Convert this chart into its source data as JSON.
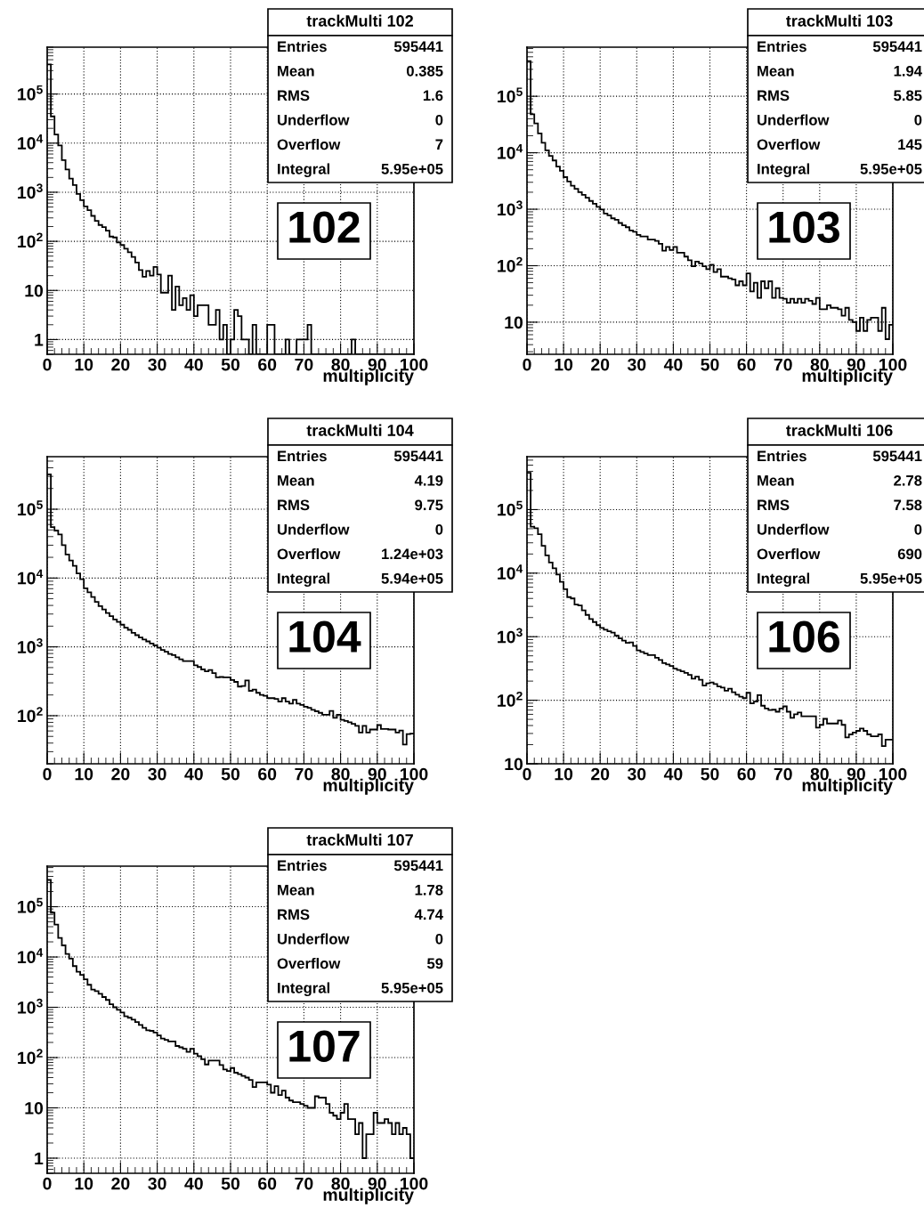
{
  "chart_data": [
    {
      "type": "histogram",
      "title": "trackMulti 102",
      "xlabel": "multiplicity",
      "color": "#000000",
      "log": "y",
      "grid": true,
      "annotations": [
        "102",
        "Entries",
        "595441",
        "Mean",
        "0.385",
        "RMS",
        "1.6",
        "Underflow",
        "0",
        "Overflow",
        "7",
        "Integral",
        "5.95e+05"
      ],
      "bins": [
        0,
        1,
        2,
        3,
        4,
        5,
        6,
        7,
        8,
        9,
        10,
        11,
        12,
        13,
        14,
        15,
        16,
        17,
        18,
        19,
        20,
        21,
        22,
        23,
        24,
        25,
        26,
        27,
        28,
        29,
        30,
        31,
        32,
        33,
        34,
        35,
        36,
        37,
        38,
        39,
        40,
        41,
        42,
        43,
        44,
        45,
        46,
        47,
        48,
        49,
        50,
        51,
        52,
        53,
        54,
        55,
        56,
        57,
        58,
        59,
        60,
        61,
        62,
        63,
        64,
        65,
        66,
        67,
        68,
        69,
        70,
        71,
        72,
        73,
        74,
        75,
        76,
        77,
        78,
        79,
        80,
        81,
        82,
        83,
        84,
        85,
        86,
        87,
        88,
        89,
        90,
        91,
        92,
        93,
        94,
        95,
        96,
        97,
        98,
        99,
        100
      ],
      "values": [
        400000,
        35000,
        15000,
        9000,
        4500,
        2900,
        1900,
        1400,
        920,
        690,
        515,
        430,
        330,
        260,
        215,
        195,
        165,
        125,
        120,
        95,
        84,
        71,
        60,
        48,
        37,
        26,
        19,
        25,
        20,
        30,
        21,
        9,
        9,
        20,
        4,
        12,
        5,
        7,
        4,
        8,
        3,
        5,
        5,
        5,
        2,
        2,
        4,
        1,
        2,
        null,
        1,
        4,
        3,
        1,
        1,
        null,
        2,
        null,
        null,
        null,
        2,
        2,
        null,
        null,
        null,
        1,
        null,
        null,
        1,
        1,
        1,
        2,
        null,
        null,
        null,
        null,
        null,
        null,
        null,
        null,
        null,
        null,
        null,
        1,
        null,
        null,
        null,
        null,
        null,
        null,
        null,
        null,
        null,
        null,
        null,
        null,
        null,
        null,
        null,
        null
      ],
      "xlim": [
        0,
        100
      ],
      "xticks": [
        0,
        10,
        20,
        30,
        40,
        50,
        60,
        70,
        80,
        90,
        100
      ],
      "ylim": [
        0.5,
        900000
      ],
      "yticks": [
        1,
        10,
        {
          "value": 100,
          "label": "10$^{2}$"
        },
        {
          "value": 1000,
          "label": "10$^{3}$"
        },
        {
          "value": 10000,
          "label": "10$^{4}$"
        },
        {
          "value": 100000,
          "label": "10$^{5}$"
        }
      ]
    },
    {
      "type": "histogram",
      "title": "trackMulti 103",
      "xlabel": "multiplicity",
      "color": "#000000",
      "log": "y",
      "grid": true,
      "annotations": [
        "103",
        "Entries",
        "595441",
        "Mean",
        "1.94",
        "RMS",
        "5.85",
        "Underflow",
        "0",
        "Overflow",
        "145",
        "Integral",
        "5.95e+05"
      ],
      "bins": [
        0,
        1,
        2,
        3,
        4,
        5,
        6,
        7,
        8,
        9,
        10,
        11,
        12,
        13,
        14,
        15,
        16,
        17,
        18,
        19,
        20,
        21,
        22,
        23,
        24,
        25,
        26,
        27,
        28,
        29,
        30,
        31,
        32,
        33,
        34,
        35,
        36,
        37,
        38,
        39,
        40,
        41,
        42,
        43,
        44,
        45,
        46,
        47,
        48,
        49,
        50,
        51,
        52,
        53,
        54,
        55,
        56,
        57,
        58,
        59,
        60,
        61,
        62,
        63,
        64,
        65,
        66,
        67,
        68,
        69,
        70,
        71,
        72,
        73,
        74,
        75,
        76,
        77,
        78,
        79,
        80,
        81,
        82,
        83,
        84,
        85,
        86,
        87,
        88,
        89,
        90,
        91,
        92,
        93,
        94,
        95,
        96,
        97,
        98,
        99,
        100
      ],
      "values": [
        420000,
        48000,
        33000,
        22000,
        15000,
        11000,
        8800,
        7300,
        5700,
        4800,
        3700,
        3100,
        2600,
        2300,
        2000,
        1800,
        1600,
        1400,
        1250,
        1100,
        990,
        840,
        780,
        690,
        650,
        570,
        520,
        480,
        420,
        400,
        350,
        330,
        330,
        290,
        290,
        275,
        245,
        185,
        215,
        190,
        215,
        170,
        170,
        145,
        125,
        98,
        118,
        110,
        98,
        87,
        104,
        77,
        87,
        64,
        64,
        60,
        57,
        45,
        53,
        45,
        73,
        35,
        50,
        27,
        53,
        40,
        53,
        27,
        40,
        27,
        26,
        22,
        26,
        22,
        26,
        22,
        26,
        24,
        21,
        27,
        17,
        17,
        20,
        18,
        18,
        17,
        13,
        18,
        11,
        10,
        7,
        12,
        7,
        11,
        12,
        12,
        7,
        18,
        5,
        9
      ],
      "xlim": [
        0,
        100
      ],
      "xticks": [
        0,
        10,
        20,
        30,
        40,
        50,
        60,
        70,
        80,
        90,
        100
      ],
      "ylim": [
        2.7,
        740000
      ],
      "yticks": [
        10,
        {
          "value": 100,
          "label": "10$^{2}$"
        },
        {
          "value": 1000,
          "label": "10$^{3}$"
        },
        {
          "value": 10000,
          "label": "10$^{4}$"
        },
        {
          "value": 100000,
          "label": "10$^{5}$"
        }
      ]
    },
    {
      "type": "histogram",
      "title": "trackMulti 104",
      "xlabel": "multiplicity",
      "color": "#000000",
      "log": "y",
      "grid": true,
      "annotations": [
        "104",
        "Entries",
        "595441",
        "Mean",
        "4.19",
        "RMS",
        "9.75",
        "Underflow",
        "0",
        "Overflow",
        "1.24e+03",
        "Integral",
        "5.94e+05"
      ],
      "bins": [
        0,
        1,
        2,
        3,
        4,
        5,
        6,
        7,
        8,
        9,
        10,
        11,
        12,
        13,
        14,
        15,
        16,
        17,
        18,
        19,
        20,
        21,
        22,
        23,
        24,
        25,
        26,
        27,
        28,
        29,
        30,
        31,
        32,
        33,
        34,
        35,
        36,
        37,
        38,
        39,
        40,
        41,
        42,
        43,
        44,
        45,
        46,
        47,
        48,
        49,
        50,
        51,
        52,
        53,
        54,
        55,
        56,
        57,
        58,
        59,
        60,
        61,
        62,
        63,
        64,
        65,
        66,
        67,
        68,
        69,
        70,
        71,
        72,
        73,
        74,
        75,
        76,
        77,
        78,
        79,
        80,
        81,
        82,
        83,
        84,
        85,
        86,
        87,
        88,
        89,
        90,
        91,
        92,
        93,
        94,
        95,
        96,
        97,
        98,
        99,
        100
      ],
      "values": [
        320000,
        55000,
        49000,
        43000,
        30000,
        22000,
        18000,
        15000,
        11700,
        9600,
        7100,
        6200,
        5300,
        4500,
        3900,
        3500,
        3100,
        2800,
        2500,
        2300,
        2100,
        1900,
        1770,
        1600,
        1480,
        1370,
        1280,
        1200,
        1120,
        1050,
        970,
        900,
        850,
        790,
        760,
        705,
        660,
        620,
        620,
        620,
        540,
        510,
        470,
        440,
        460,
        415,
        360,
        365,
        360,
        360,
        330,
        310,
        265,
        270,
        325,
        230,
        240,
        215,
        200,
        195,
        180,
        180,
        175,
        160,
        180,
        160,
        150,
        170,
        150,
        143,
        135,
        130,
        122,
        116,
        110,
        103,
        103,
        117,
        93,
        103,
        87,
        84,
        80,
        76,
        71,
        57,
        71,
        57,
        63,
        63,
        73,
        64,
        64,
        63,
        63,
        57,
        61,
        38,
        54,
        55
      ],
      "xlim": [
        0,
        100
      ],
      "xticks": [
        0,
        10,
        20,
        30,
        40,
        50,
        60,
        70,
        80,
        90,
        100
      ],
      "ylim": [
        20,
        580000
      ],
      "yticks": [
        {
          "value": 100,
          "label": "10$^{2}$"
        },
        {
          "value": 1000,
          "label": "10$^{3}$"
        },
        {
          "value": 10000,
          "label": "10$^{4}$"
        },
        {
          "value": 100000,
          "label": "10$^{5}$"
        }
      ]
    },
    {
      "type": "histogram",
      "title": "trackMulti 106",
      "xlabel": "multiplicity",
      "color": "#000000",
      "log": "y",
      "grid": true,
      "annotations": [
        "106",
        "Entries",
        "595441",
        "Mean",
        "2.78",
        "RMS",
        "7.58",
        "Underflow",
        "0",
        "Overflow",
        "690",
        "Integral",
        "5.95e+05"
      ],
      "bins": [
        0,
        1,
        2,
        3,
        4,
        5,
        6,
        7,
        8,
        9,
        10,
        11,
        12,
        13,
        14,
        15,
        16,
        17,
        18,
        19,
        20,
        21,
        22,
        23,
        24,
        25,
        26,
        27,
        28,
        29,
        30,
        31,
        32,
        33,
        34,
        35,
        36,
        37,
        38,
        39,
        40,
        41,
        42,
        43,
        44,
        45,
        46,
        47,
        48,
        49,
        50,
        51,
        52,
        53,
        54,
        55,
        56,
        57,
        58,
        59,
        60,
        61,
        62,
        63,
        64,
        65,
        66,
        67,
        68,
        69,
        70,
        71,
        72,
        73,
        74,
        75,
        76,
        77,
        78,
        79,
        80,
        81,
        82,
        83,
        84,
        85,
        86,
        87,
        88,
        89,
        90,
        91,
        92,
        93,
        94,
        95,
        96,
        97,
        98,
        99,
        100
      ],
      "values": [
        380000,
        54000,
        51000,
        41000,
        27000,
        19000,
        14700,
        11900,
        9500,
        7300,
        5600,
        4200,
        4000,
        3200,
        3100,
        2600,
        2200,
        1900,
        1700,
        1520,
        1370,
        1290,
        1220,
        1160,
        1040,
        940,
        870,
        800,
        815,
        715,
        610,
        575,
        545,
        515,
        515,
        465,
        430,
        385,
        365,
        345,
        315,
        300,
        285,
        270,
        250,
        218,
        235,
        210,
        170,
        185,
        190,
        180,
        165,
        158,
        141,
        152,
        134,
        122,
        114,
        108,
        131,
        89,
        95,
        120,
        82,
        74,
        70,
        71,
        66,
        74,
        80,
        66,
        53,
        60,
        64,
        56,
        56,
        56,
        56,
        37,
        41,
        51,
        43,
        43,
        43,
        48,
        41,
        26,
        29,
        31,
        33,
        36,
        33,
        29,
        27,
        27,
        29,
        19,
        24,
        24
      ],
      "xlim": [
        0,
        100
      ],
      "xticks": [
        0,
        10,
        20,
        30,
        40,
        50,
        60,
        70,
        80,
        90,
        100
      ],
      "ylim": [
        10,
        680000
      ],
      "yticks": [
        10,
        {
          "value": 100,
          "label": "10$^{2}$"
        },
        {
          "value": 1000,
          "label": "10$^{3}$"
        },
        {
          "value": 10000,
          "label": "10$^{4}$"
        },
        {
          "value": 100000,
          "label": "10$^{5}$"
        }
      ]
    },
    {
      "type": "histogram",
      "title": "trackMulti 107",
      "xlabel": "multiplicity",
      "color": "#000000",
      "log": "y",
      "grid": true,
      "annotations": [
        "107",
        "Entries",
        "595441",
        "Mean",
        "1.78",
        "RMS",
        "4.74",
        "Underflow",
        "0",
        "Overflow",
        "59",
        "Integral",
        "5.95e+05"
      ],
      "bins": [
        0,
        1,
        2,
        3,
        4,
        5,
        6,
        7,
        8,
        9,
        10,
        11,
        12,
        13,
        14,
        15,
        16,
        17,
        18,
        19,
        20,
        21,
        22,
        23,
        24,
        25,
        26,
        27,
        28,
        29,
        30,
        31,
        32,
        33,
        34,
        35,
        36,
        37,
        38,
        39,
        40,
        41,
        42,
        43,
        44,
        45,
        46,
        47,
        48,
        49,
        50,
        51,
        52,
        53,
        54,
        55,
        56,
        57,
        58,
        59,
        60,
        61,
        62,
        63,
        64,
        65,
        66,
        67,
        68,
        69,
        70,
        71,
        72,
        73,
        74,
        75,
        76,
        77,
        78,
        79,
        80,
        81,
        82,
        83,
        84,
        85,
        86,
        87,
        88,
        89,
        90,
        91,
        92,
        93,
        94,
        95,
        96,
        97,
        98,
        99,
        100
      ],
      "values": [
        340000,
        76000,
        44000,
        24000,
        17000,
        11500,
        9300,
        6600,
        5100,
        4400,
        3600,
        2800,
        2250,
        2100,
        1850,
        1600,
        1400,
        1150,
        1000,
        890,
        790,
        665,
        620,
        570,
        510,
        445,
        390,
        350,
        340,
        315,
        275,
        240,
        225,
        210,
        210,
        170,
        160,
        150,
        130,
        150,
        120,
        107,
        93,
        73,
        87,
        87,
        87,
        71,
        58,
        54,
        62,
        50,
        47,
        43,
        40,
        36,
        26,
        32,
        32,
        32,
        29,
        20,
        27,
        18,
        22,
        16,
        14,
        13,
        13,
        12,
        11,
        10,
        10,
        17,
        16,
        16,
        12,
        8,
        7,
        6,
        8,
        12,
        6,
        6,
        3,
        5,
        1,
        3,
        3,
        8,
        5,
        5,
        6,
        5,
        3,
        5,
        3,
        4,
        3,
        1
      ],
      "xlim": [
        0,
        100
      ],
      "xticks": [
        0,
        10,
        20,
        30,
        40,
        50,
        60,
        70,
        80,
        90,
        100
      ],
      "ylim": [
        0.5,
        640000
      ],
      "yticks": [
        1,
        10,
        {
          "value": 100,
          "label": "10$^{2}$"
        },
        {
          "value": 1000,
          "label": "10$^{3}$"
        },
        {
          "value": 10000,
          "label": "10$^{4}$"
        },
        {
          "value": 100000,
          "label": "10$^{5}$"
        }
      ]
    }
  ]
}
